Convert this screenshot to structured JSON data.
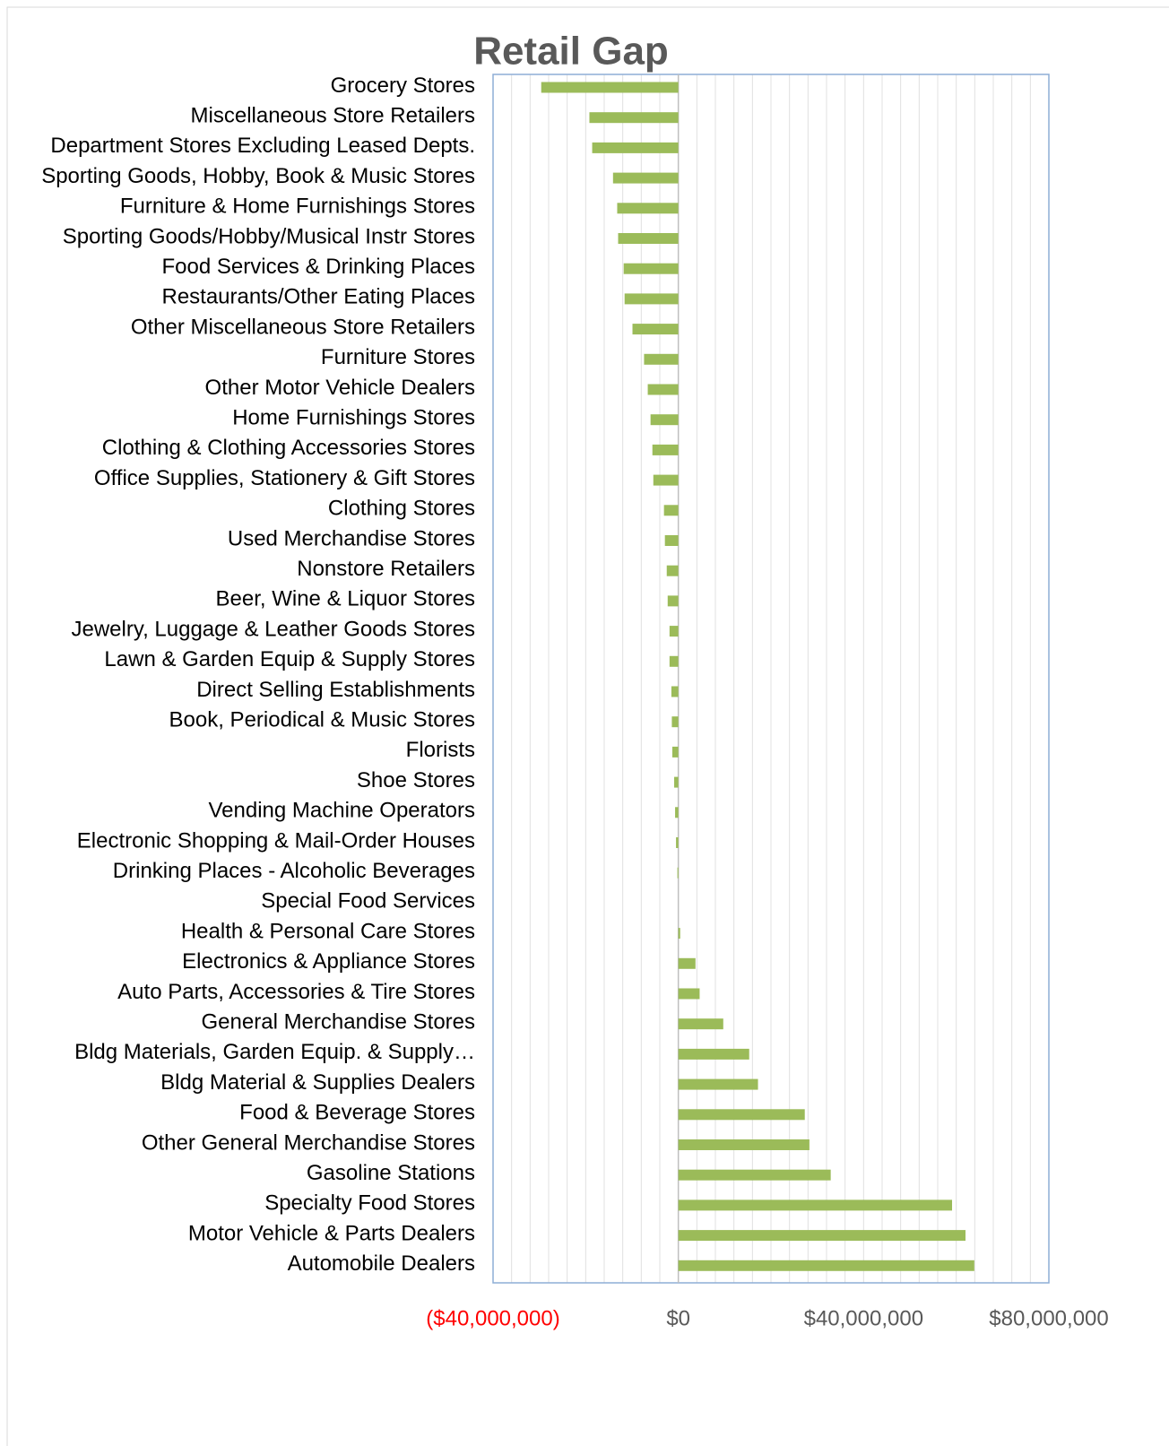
{
  "chart_data": {
    "type": "barh",
    "title": "Retail Gap",
    "categories": [
      "Grocery Stores",
      "Miscellaneous Store Retailers",
      "Department Stores Excluding Leased Depts.",
      "Sporting Goods, Hobby, Book & Music Stores",
      "Furniture & Home Furnishings Stores",
      "Sporting Goods/Hobby/Musical Instr Stores",
      "Food Services & Drinking Places",
      "Restaurants/Other Eating Places",
      "Other Miscellaneous Store Retailers",
      "Furniture Stores",
      "Other Motor Vehicle Dealers",
      "Home Furnishings Stores",
      "Clothing & Clothing Accessories Stores",
      "Office Supplies, Stationery & Gift Stores",
      "Clothing Stores",
      "Used Merchandise Stores",
      "Nonstore Retailers",
      "Beer, Wine & Liquor Stores",
      "Jewelry, Luggage & Leather Goods Stores",
      "Lawn & Garden Equip & Supply Stores",
      "Direct Selling Establishments",
      "Book, Periodical & Music Stores",
      "Florists",
      "Shoe Stores",
      "Vending Machine Operators",
      "Electronic Shopping & Mail-Order Houses",
      "Drinking Places - Alcoholic Beverages",
      "Special Food Services",
      "Health & Personal Care Stores",
      "Electronics & Appliance Stores",
      "Auto Parts, Accessories & Tire Stores",
      "General Merchandise Stores",
      "Bldg Materials, Garden Equip. & Supply…",
      "Bldg Material & Supplies Dealers",
      "Food & Beverage Stores",
      "Other General Merchandise Stores",
      "Gasoline Stations",
      "Specialty Food Stores",
      "Motor Vehicle & Parts Dealers",
      "Automobile Dealers"
    ],
    "values": [
      -29600000,
      -19200000,
      -18600000,
      -14100000,
      -13200000,
      -13000000,
      -11800000,
      -11600000,
      -9900000,
      -7400000,
      -6600000,
      -6000000,
      -5600000,
      -5400000,
      -3100000,
      -2900000,
      -2500000,
      -2300000,
      -1900000,
      -1900000,
      -1500000,
      -1400000,
      -1300000,
      -900000,
      -700000,
      -500000,
      -200000,
      0,
      400000,
      3700000,
      4600000,
      9700000,
      15300000,
      17200000,
      27300000,
      28300000,
      32900000,
      59100000,
      62000000,
      63900000
    ],
    "color": "#9bbb59",
    "xlim": [
      -40000000,
      80000000
    ],
    "xticks": [
      {
        "value": -40000000,
        "label": "($40,000,000)"
      },
      {
        "value": 0,
        "label": "$0"
      },
      {
        "value": 40000000,
        "label": "$40,000,000"
      },
      {
        "value": 80000000,
        "label": "$80,000,000"
      }
    ],
    "negative_tick_color": "#ff0000",
    "minor_xticks": [
      -40000000,
      -36000000,
      -32000000,
      -28000000,
      -24000000,
      -20000000,
      -16000000,
      -12000000,
      -8000000,
      -4000000,
      0,
      4000000,
      8000000,
      12000000,
      16000000,
      20000000,
      24000000,
      28000000,
      32000000,
      36000000,
      40000000,
      44000000,
      48000000,
      52000000,
      56000000,
      60000000,
      64000000,
      68000000,
      72000000,
      76000000,
      80000000
    ],
    "grid": true
  }
}
